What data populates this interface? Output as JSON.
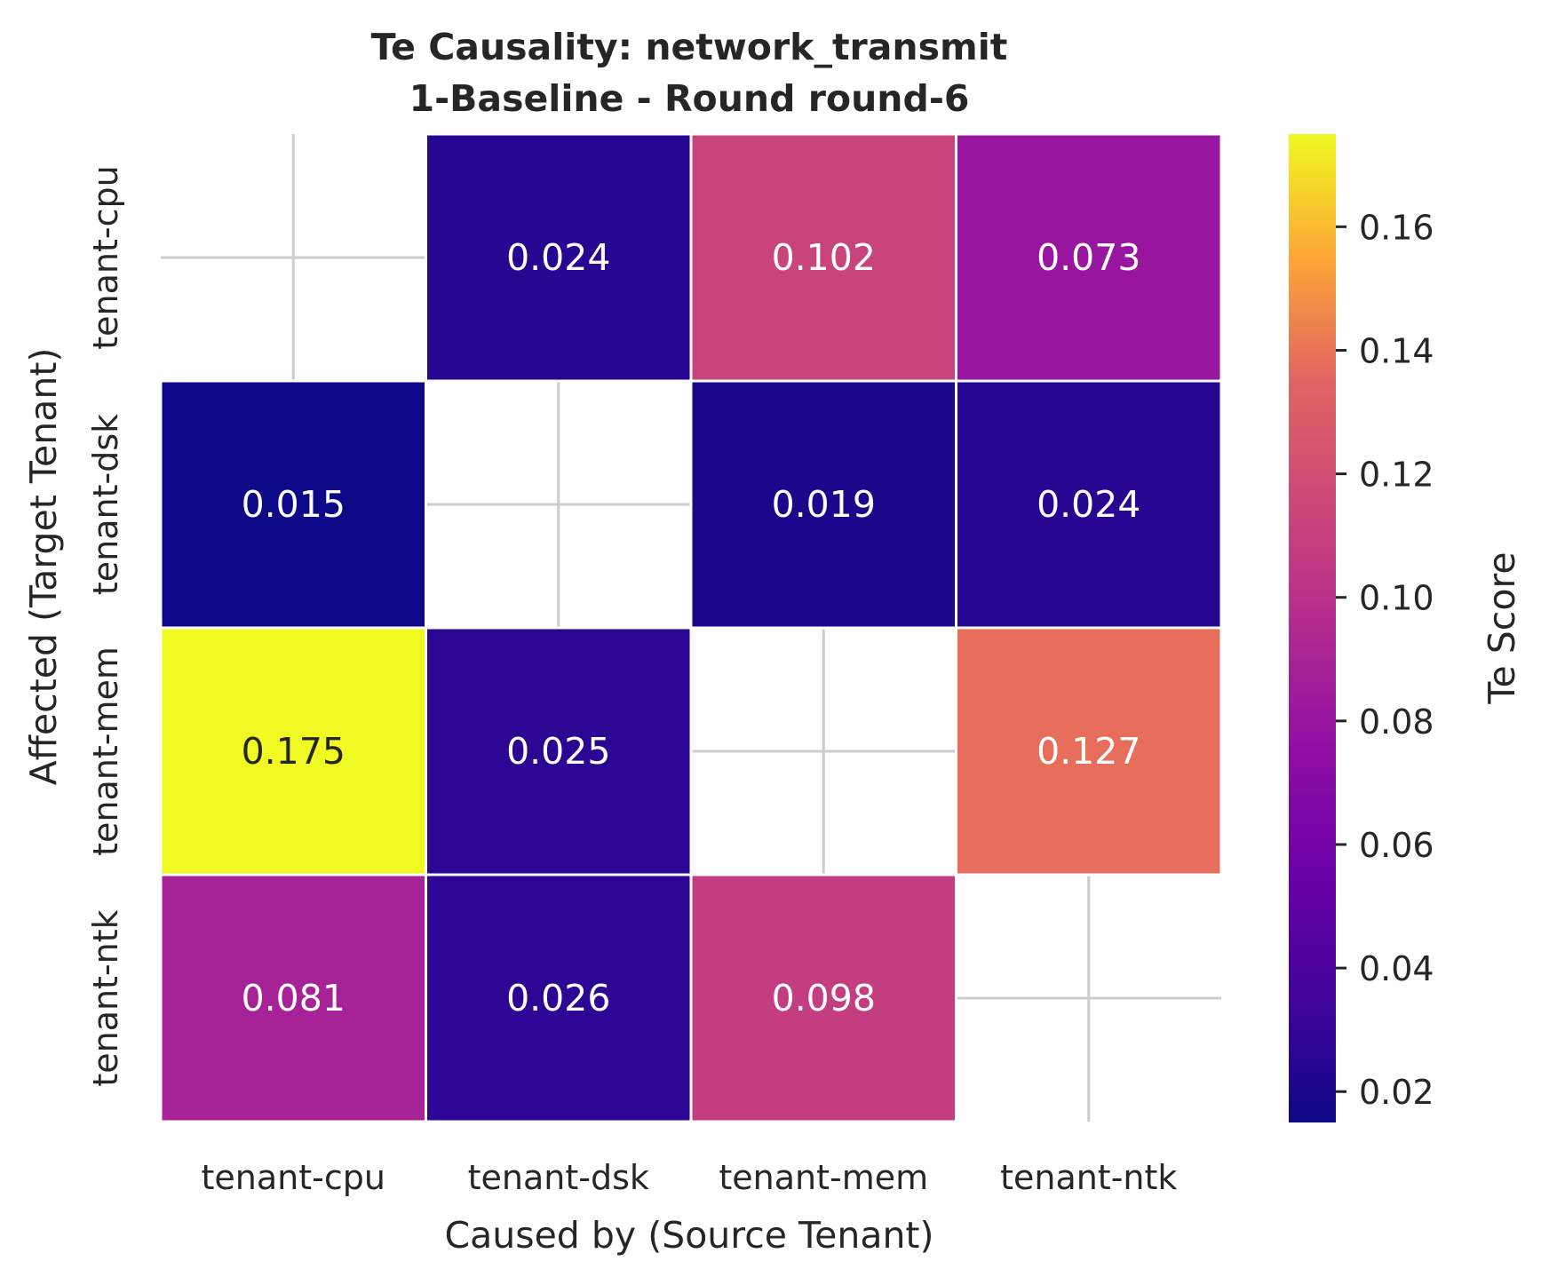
{
  "chart_data": {
    "type": "heatmap",
    "title": "Te Causality: network_transmit",
    "subtitle": "1-Baseline - Round round-6",
    "xlabel": "Caused by (Source Tenant)",
    "ylabel": "Affected (Target Tenant)",
    "x_categories": [
      "tenant-cpu",
      "tenant-dsk",
      "tenant-mem",
      "tenant-ntk"
    ],
    "y_categories": [
      "tenant-cpu",
      "tenant-dsk",
      "tenant-mem",
      "tenant-ntk"
    ],
    "values": [
      [
        null,
        0.024,
        0.102,
        0.073
      ],
      [
        0.015,
        null,
        0.019,
        0.024
      ],
      [
        0.175,
        0.025,
        null,
        0.127
      ],
      [
        0.081,
        0.026,
        0.098,
        null
      ]
    ],
    "value_labels": [
      [
        null,
        "0.024",
        "0.102",
        "0.073"
      ],
      [
        "0.015",
        null,
        "0.019",
        "0.024"
      ],
      [
        "0.175",
        "0.025",
        null,
        "0.127"
      ],
      [
        "0.081",
        "0.026",
        "0.098",
        null
      ]
    ],
    "colormap": "plasma",
    "colorbar": {
      "label": "Te Score",
      "vmin": 0.015,
      "vmax": 0.175,
      "ticks": [
        0.02,
        0.04,
        0.06,
        0.08,
        0.1,
        0.12,
        0.14,
        0.16
      ],
      "tick_labels": [
        "0.02",
        "0.04",
        "0.06",
        "0.08",
        "0.10",
        "0.12",
        "0.14",
        "0.16"
      ]
    },
    "grid": true,
    "legend": "colorbar-right"
  }
}
